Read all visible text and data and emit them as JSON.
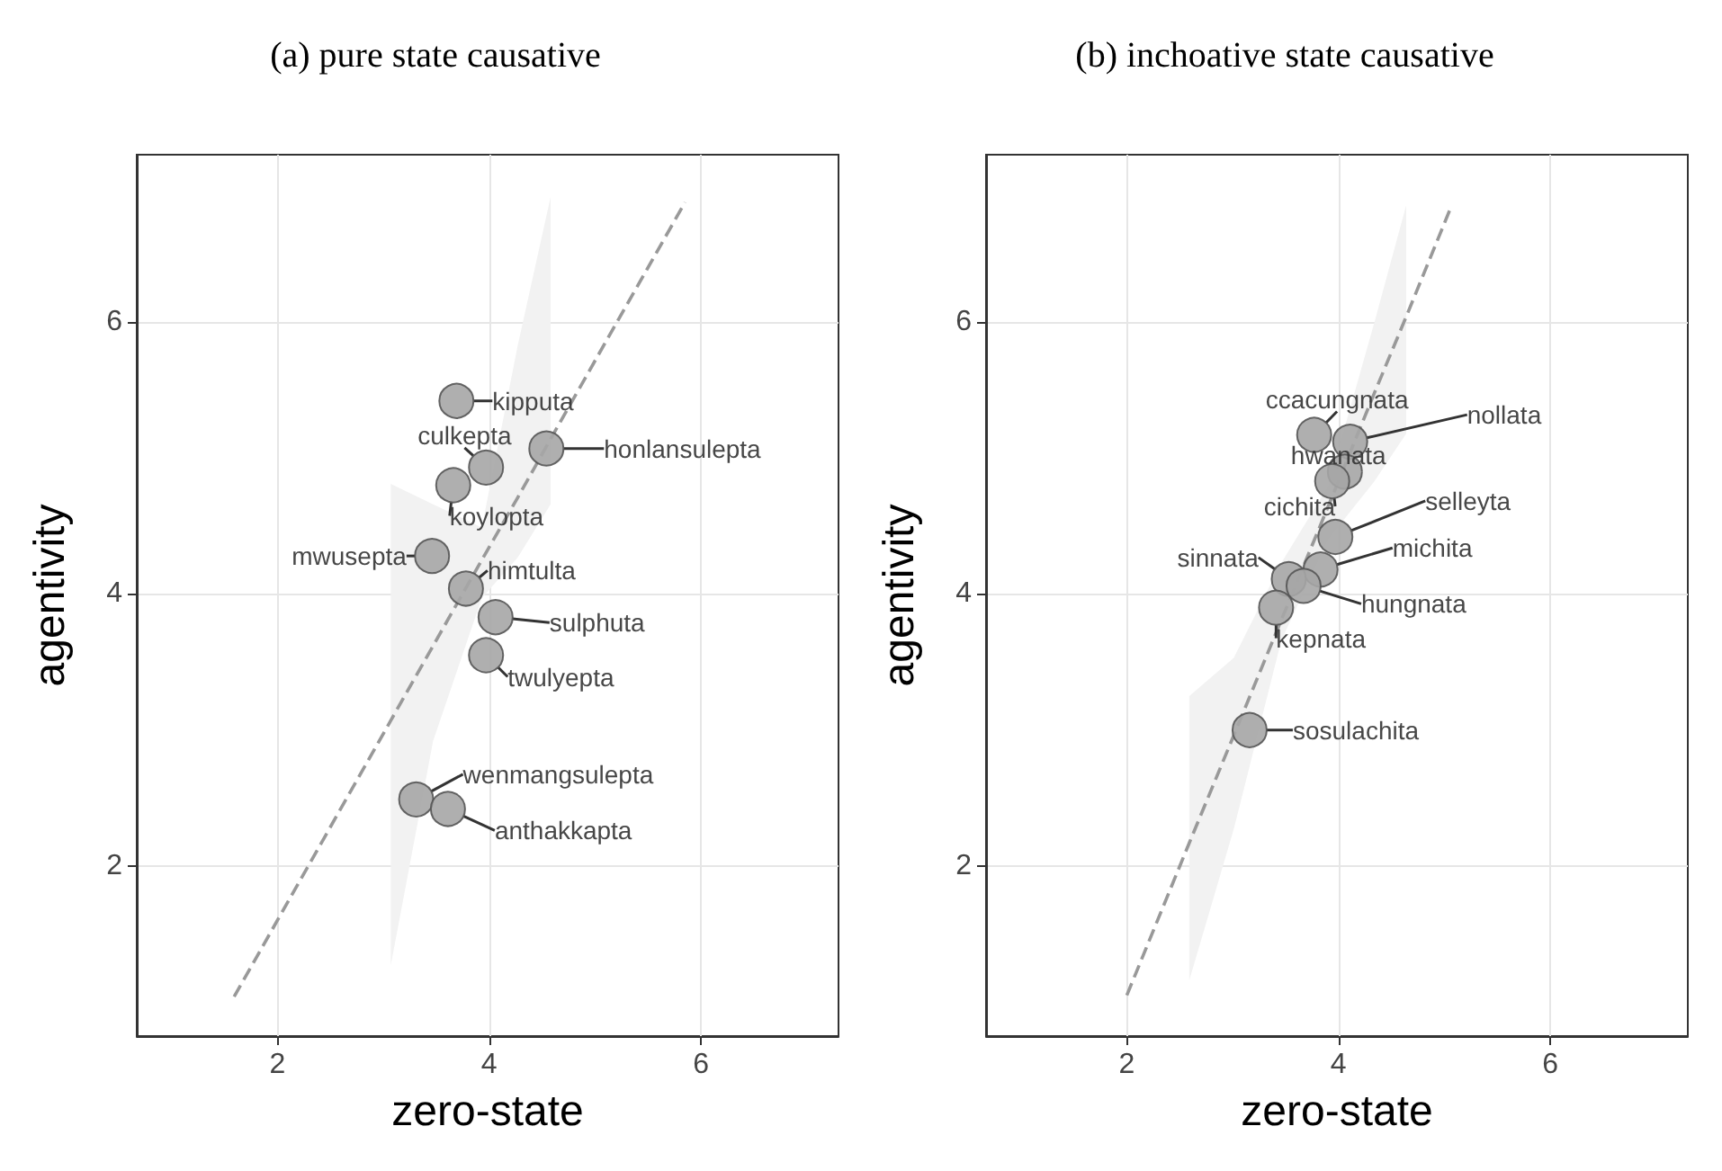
{
  "chart_data": [
    {
      "type": "scatter",
      "title": "(a) pure state causative",
      "xlabel": "zero-state",
      "ylabel": "agentivity",
      "xlim": [
        0.67,
        7.3
      ],
      "ylim": [
        0.75,
        7.23
      ],
      "xticks": [
        2,
        4,
        6
      ],
      "yticks": [
        2,
        4,
        6
      ],
      "grid": true,
      "marker": "circle",
      "series": [
        {
          "type": "line",
          "marker": "none",
          "color": "#999999",
          "line_style": "dashed",
          "x": [
            1.59,
            3.07,
            3.47,
            3.93,
            4.27,
            4.58,
            5.85
          ],
          "values": [
            1.04,
            3.07,
            3.62,
            4.25,
            4.71,
            5.14,
            6.88
          ],
          "lower": [
            null,
            1.27,
            2.92,
            3.97,
            4.27,
            4.66,
            null
          ],
          "upper": [
            null,
            4.81,
            4.66,
            4.49,
            5.83,
            6.92,
            null
          ]
        },
        {
          "color": "#a6a6a6",
          "x": [
            3.69,
            4.54,
            3.97,
            3.66,
            3.46,
            3.78,
            4.06,
            3.97,
            3.31,
            3.61
          ],
          "values": [
            5.42,
            5.07,
            4.93,
            4.8,
            4.28,
            4.04,
            3.83,
            3.55,
            2.49,
            2.42
          ],
          "value_labels": [
            "kipputa",
            "honlansulepta",
            "culkepta",
            "koylopta",
            "mwusepta",
            "himtulta",
            "sulphuta",
            "twulyepta",
            "wenmangsulepta",
            "anthakkapta"
          ]
        }
      ]
    },
    {
      "type": "scatter",
      "title": "(b) inchoative state causative",
      "xlabel": "zero-state",
      "ylabel": "agentivity",
      "xlim": [
        0.67,
        7.3
      ],
      "ylim": [
        0.75,
        7.23
      ],
      "xticks": [
        2,
        4,
        6
      ],
      "yticks": [
        2,
        4,
        6
      ],
      "grid": true,
      "marker": "circle",
      "series": [
        {
          "type": "line",
          "marker": "none",
          "color": "#999999",
          "line_style": "dashed",
          "x": [
            2.0,
            2.59,
            3.01,
            3.46,
            3.9,
            4.34,
            4.64,
            5.06
          ],
          "values": [
            1.05,
            2.17,
            2.96,
            3.81,
            4.64,
            5.48,
            6.04,
            6.84
          ],
          "lower": [
            null,
            1.16,
            2.27,
            3.66,
            4.4,
            4.83,
            5.18,
            null
          ],
          "upper": [
            null,
            3.25,
            3.53,
            4.23,
            4.79,
            6.0,
            6.86,
            null
          ]
        },
        {
          "color": "#a6a6a6",
          "x": [
            3.77,
            4.11,
            4.06,
            3.94,
            3.97,
            3.83,
            3.53,
            3.67,
            3.41,
            3.16
          ],
          "values": [
            5.17,
            5.12,
            4.9,
            4.83,
            4.42,
            4.18,
            4.11,
            4.06,
            3.9,
            3.0
          ],
          "value_labels": [
            "ccacungnata",
            "nollata",
            "hwanata",
            "cichita",
            "selleyta",
            "michita",
            "sinnata",
            "hungnata",
            "kepnata",
            "sosulachita"
          ]
        }
      ]
    }
  ]
}
